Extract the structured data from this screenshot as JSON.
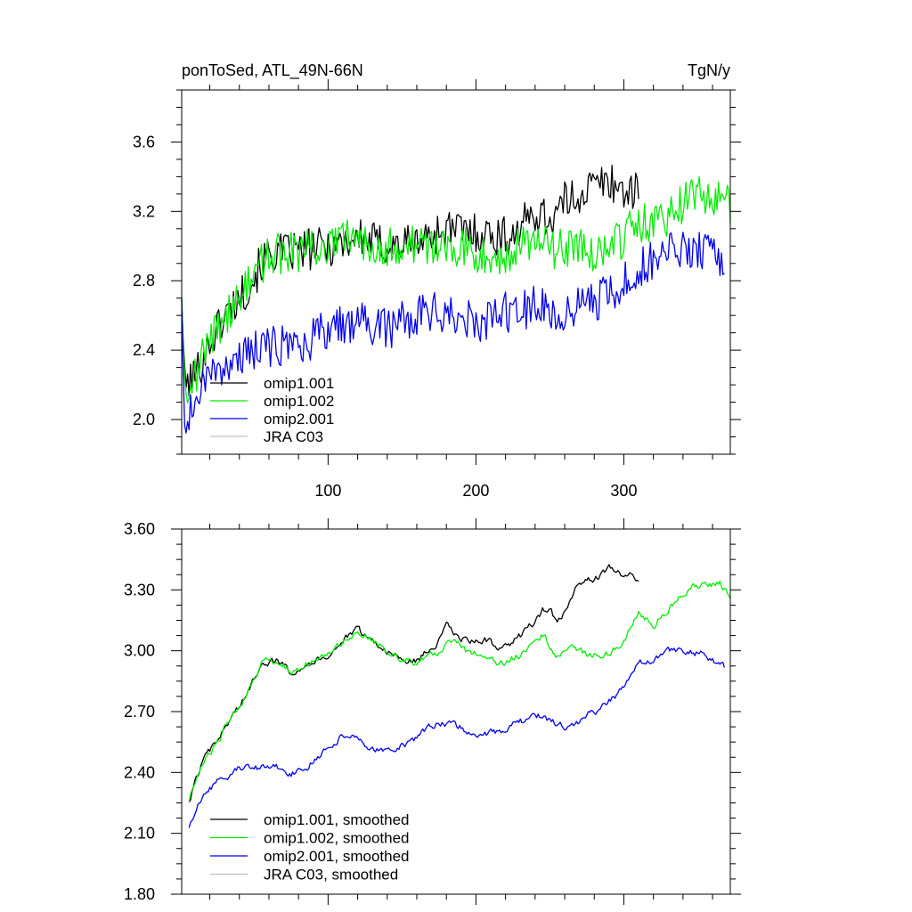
{
  "chart_data": [
    {
      "type": "line",
      "title": "ponToSed, ATL_49N-66N",
      "units": "TgN/y",
      "xlim": [
        1,
        372
      ],
      "ylim": [
        1.8,
        3.9
      ],
      "xticks": [
        100,
        200,
        300
      ],
      "yticks": [
        2.0,
        2.4,
        2.8,
        3.2,
        3.6
      ],
      "ytick_labels": [
        "2.0",
        "2.4",
        "2.8",
        "3.2",
        "3.6"
      ],
      "legend_position": "bottom-left",
      "noise": 0.12,
      "series": [
        {
          "name": "omip1.001",
          "color": "#000000",
          "x_end": 310,
          "points": [
            [
              1,
              2.75
            ],
            [
              3,
              2.2
            ],
            [
              10,
              2.25
            ],
            [
              20,
              2.45
            ],
            [
              30,
              2.6
            ],
            [
              40,
              2.7
            ],
            [
              50,
              2.82
            ],
            [
              55,
              2.9
            ],
            [
              60,
              2.95
            ],
            [
              80,
              2.97
            ],
            [
              100,
              3.0
            ],
            [
              120,
              3.05
            ],
            [
              140,
              3.0
            ],
            [
              160,
              3.02
            ],
            [
              180,
              3.1
            ],
            [
              200,
              3.08
            ],
            [
              220,
              3.05
            ],
            [
              230,
              3.1
            ],
            [
              240,
              3.2
            ],
            [
              250,
              3.15
            ],
            [
              260,
              3.25
            ],
            [
              270,
              3.3
            ],
            [
              280,
              3.35
            ],
            [
              290,
              3.38
            ],
            [
              300,
              3.32
            ],
            [
              310,
              3.3
            ]
          ]
        },
        {
          "name": "omip1.002",
          "color": "#00ee00",
          "x_end": 372,
          "points": [
            [
              1,
              2.75
            ],
            [
              3,
              2.2
            ],
            [
              10,
              2.25
            ],
            [
              20,
              2.45
            ],
            [
              30,
              2.6
            ],
            [
              40,
              2.7
            ],
            [
              50,
              2.82
            ],
            [
              55,
              2.9
            ],
            [
              60,
              2.95
            ],
            [
              80,
              2.97
            ],
            [
              100,
              3.0
            ],
            [
              120,
              3.05
            ],
            [
              140,
              3.0
            ],
            [
              160,
              3.0
            ],
            [
              180,
              3.02
            ],
            [
              200,
              2.97
            ],
            [
              220,
              2.95
            ],
            [
              240,
              3.05
            ],
            [
              250,
              2.98
            ],
            [
              260,
              3.0
            ],
            [
              280,
              2.97
            ],
            [
              300,
              3.05
            ],
            [
              310,
              3.15
            ],
            [
              320,
              3.1
            ],
            [
              340,
              3.25
            ],
            [
              350,
              3.3
            ],
            [
              360,
              3.3
            ],
            [
              372,
              3.22
            ]
          ]
        },
        {
          "name": "omip2.001",
          "color": "#0000ee",
          "x_end": 368,
          "points": [
            [
              1,
              2.72
            ],
            [
              3,
              2.0
            ],
            [
              10,
              2.12
            ],
            [
              20,
              2.25
            ],
            [
              30,
              2.32
            ],
            [
              40,
              2.38
            ],
            [
              60,
              2.42
            ],
            [
              80,
              2.42
            ],
            [
              100,
              2.52
            ],
            [
              120,
              2.58
            ],
            [
              140,
              2.52
            ],
            [
              160,
              2.6
            ],
            [
              180,
              2.63
            ],
            [
              200,
              2.55
            ],
            [
              220,
              2.62
            ],
            [
              240,
              2.65
            ],
            [
              260,
              2.62
            ],
            [
              280,
              2.68
            ],
            [
              300,
              2.78
            ],
            [
              310,
              2.88
            ],
            [
              320,
              2.92
            ],
            [
              340,
              2.98
            ],
            [
              360,
              2.96
            ],
            [
              368,
              2.88
            ]
          ]
        },
        {
          "name": "JRA C03",
          "color": "#c0c0c0",
          "points": []
        }
      ]
    },
    {
      "type": "line",
      "xlim": [
        1,
        372
      ],
      "ylim": [
        1.8,
        3.6
      ],
      "xticks": [
        100,
        200,
        300
      ],
      "yticks": [
        1.8,
        2.1,
        2.4,
        2.7,
        3.0,
        3.3,
        3.6
      ],
      "ytick_labels": [
        "1.80",
        "2.10",
        "2.40",
        "2.70",
        "3.00",
        "3.30",
        "3.60"
      ],
      "legend_position": "bottom-left",
      "noise": 0.015,
      "series": [
        {
          "name": "omip1.001, smoothed",
          "color": "#000000",
          "x_end": 310,
          "points": [
            [
              6,
              2.25
            ],
            [
              10,
              2.35
            ],
            [
              15,
              2.45
            ],
            [
              25,
              2.55
            ],
            [
              35,
              2.68
            ],
            [
              45,
              2.78
            ],
            [
              55,
              2.95
            ],
            [
              65,
              2.95
            ],
            [
              75,
              2.9
            ],
            [
              90,
              2.95
            ],
            [
              100,
              2.98
            ],
            [
              110,
              3.05
            ],
            [
              120,
              3.1
            ],
            [
              130,
              3.05
            ],
            [
              140,
              3.0
            ],
            [
              150,
              2.95
            ],
            [
              160,
              2.95
            ],
            [
              175,
              3.05
            ],
            [
              180,
              3.12
            ],
            [
              190,
              3.05
            ],
            [
              200,
              3.05
            ],
            [
              210,
              3.05
            ],
            [
              215,
              2.98
            ],
            [
              225,
              3.05
            ],
            [
              235,
              3.1
            ],
            [
              245,
              3.2
            ],
            [
              250,
              3.22
            ],
            [
              255,
              3.12
            ],
            [
              265,
              3.25
            ],
            [
              270,
              3.35
            ],
            [
              280,
              3.35
            ],
            [
              290,
              3.4
            ],
            [
              300,
              3.38
            ],
            [
              305,
              3.38
            ],
            [
              310,
              3.32
            ]
          ]
        },
        {
          "name": "omip1.002, smoothed",
          "color": "#00ee00",
          "x_end": 372,
          "points": [
            [
              6,
              2.25
            ],
            [
              10,
              2.35
            ],
            [
              15,
              2.45
            ],
            [
              25,
              2.55
            ],
            [
              35,
              2.68
            ],
            [
              45,
              2.78
            ],
            [
              55,
              2.95
            ],
            [
              65,
              2.95
            ],
            [
              75,
              2.9
            ],
            [
              90,
              2.95
            ],
            [
              100,
              2.98
            ],
            [
              110,
              3.05
            ],
            [
              120,
              3.1
            ],
            [
              130,
              3.05
            ],
            [
              140,
              3.0
            ],
            [
              150,
              2.95
            ],
            [
              160,
              2.95
            ],
            [
              175,
              3.0
            ],
            [
              185,
              3.05
            ],
            [
              195,
              2.98
            ],
            [
              210,
              2.98
            ],
            [
              215,
              2.93
            ],
            [
              230,
              2.98
            ],
            [
              240,
              3.05
            ],
            [
              245,
              3.08
            ],
            [
              255,
              2.98
            ],
            [
              265,
              3.02
            ],
            [
              275,
              2.98
            ],
            [
              290,
              2.98
            ],
            [
              300,
              3.05
            ],
            [
              310,
              3.2
            ],
            [
              320,
              3.12
            ],
            [
              335,
              3.25
            ],
            [
              345,
              3.32
            ],
            [
              355,
              3.32
            ],
            [
              365,
              3.33
            ],
            [
              372,
              3.27
            ]
          ]
        },
        {
          "name": "omip2.001, smoothed",
          "color": "#0000ee",
          "x_end": 368,
          "points": [
            [
              6,
              2.12
            ],
            [
              10,
              2.2
            ],
            [
              15,
              2.28
            ],
            [
              25,
              2.35
            ],
            [
              40,
              2.42
            ],
            [
              55,
              2.42
            ],
            [
              65,
              2.42
            ],
            [
              75,
              2.4
            ],
            [
              85,
              2.42
            ],
            [
              100,
              2.52
            ],
            [
              110,
              2.58
            ],
            [
              120,
              2.58
            ],
            [
              130,
              2.52
            ],
            [
              145,
              2.52
            ],
            [
              160,
              2.57
            ],
            [
              175,
              2.65
            ],
            [
              190,
              2.62
            ],
            [
              200,
              2.57
            ],
            [
              215,
              2.6
            ],
            [
              230,
              2.65
            ],
            [
              245,
              2.68
            ],
            [
              260,
              2.62
            ],
            [
              270,
              2.65
            ],
            [
              280,
              2.7
            ],
            [
              290,
              2.75
            ],
            [
              300,
              2.82
            ],
            [
              310,
              2.95
            ],
            [
              320,
              2.95
            ],
            [
              330,
              3.0
            ],
            [
              345,
              3.0
            ],
            [
              355,
              2.98
            ],
            [
              362,
              2.95
            ],
            [
              368,
              2.92
            ]
          ]
        },
        {
          "name": "JRA C03, smoothed",
          "color": "#c0c0c0",
          "points": []
        }
      ]
    }
  ]
}
